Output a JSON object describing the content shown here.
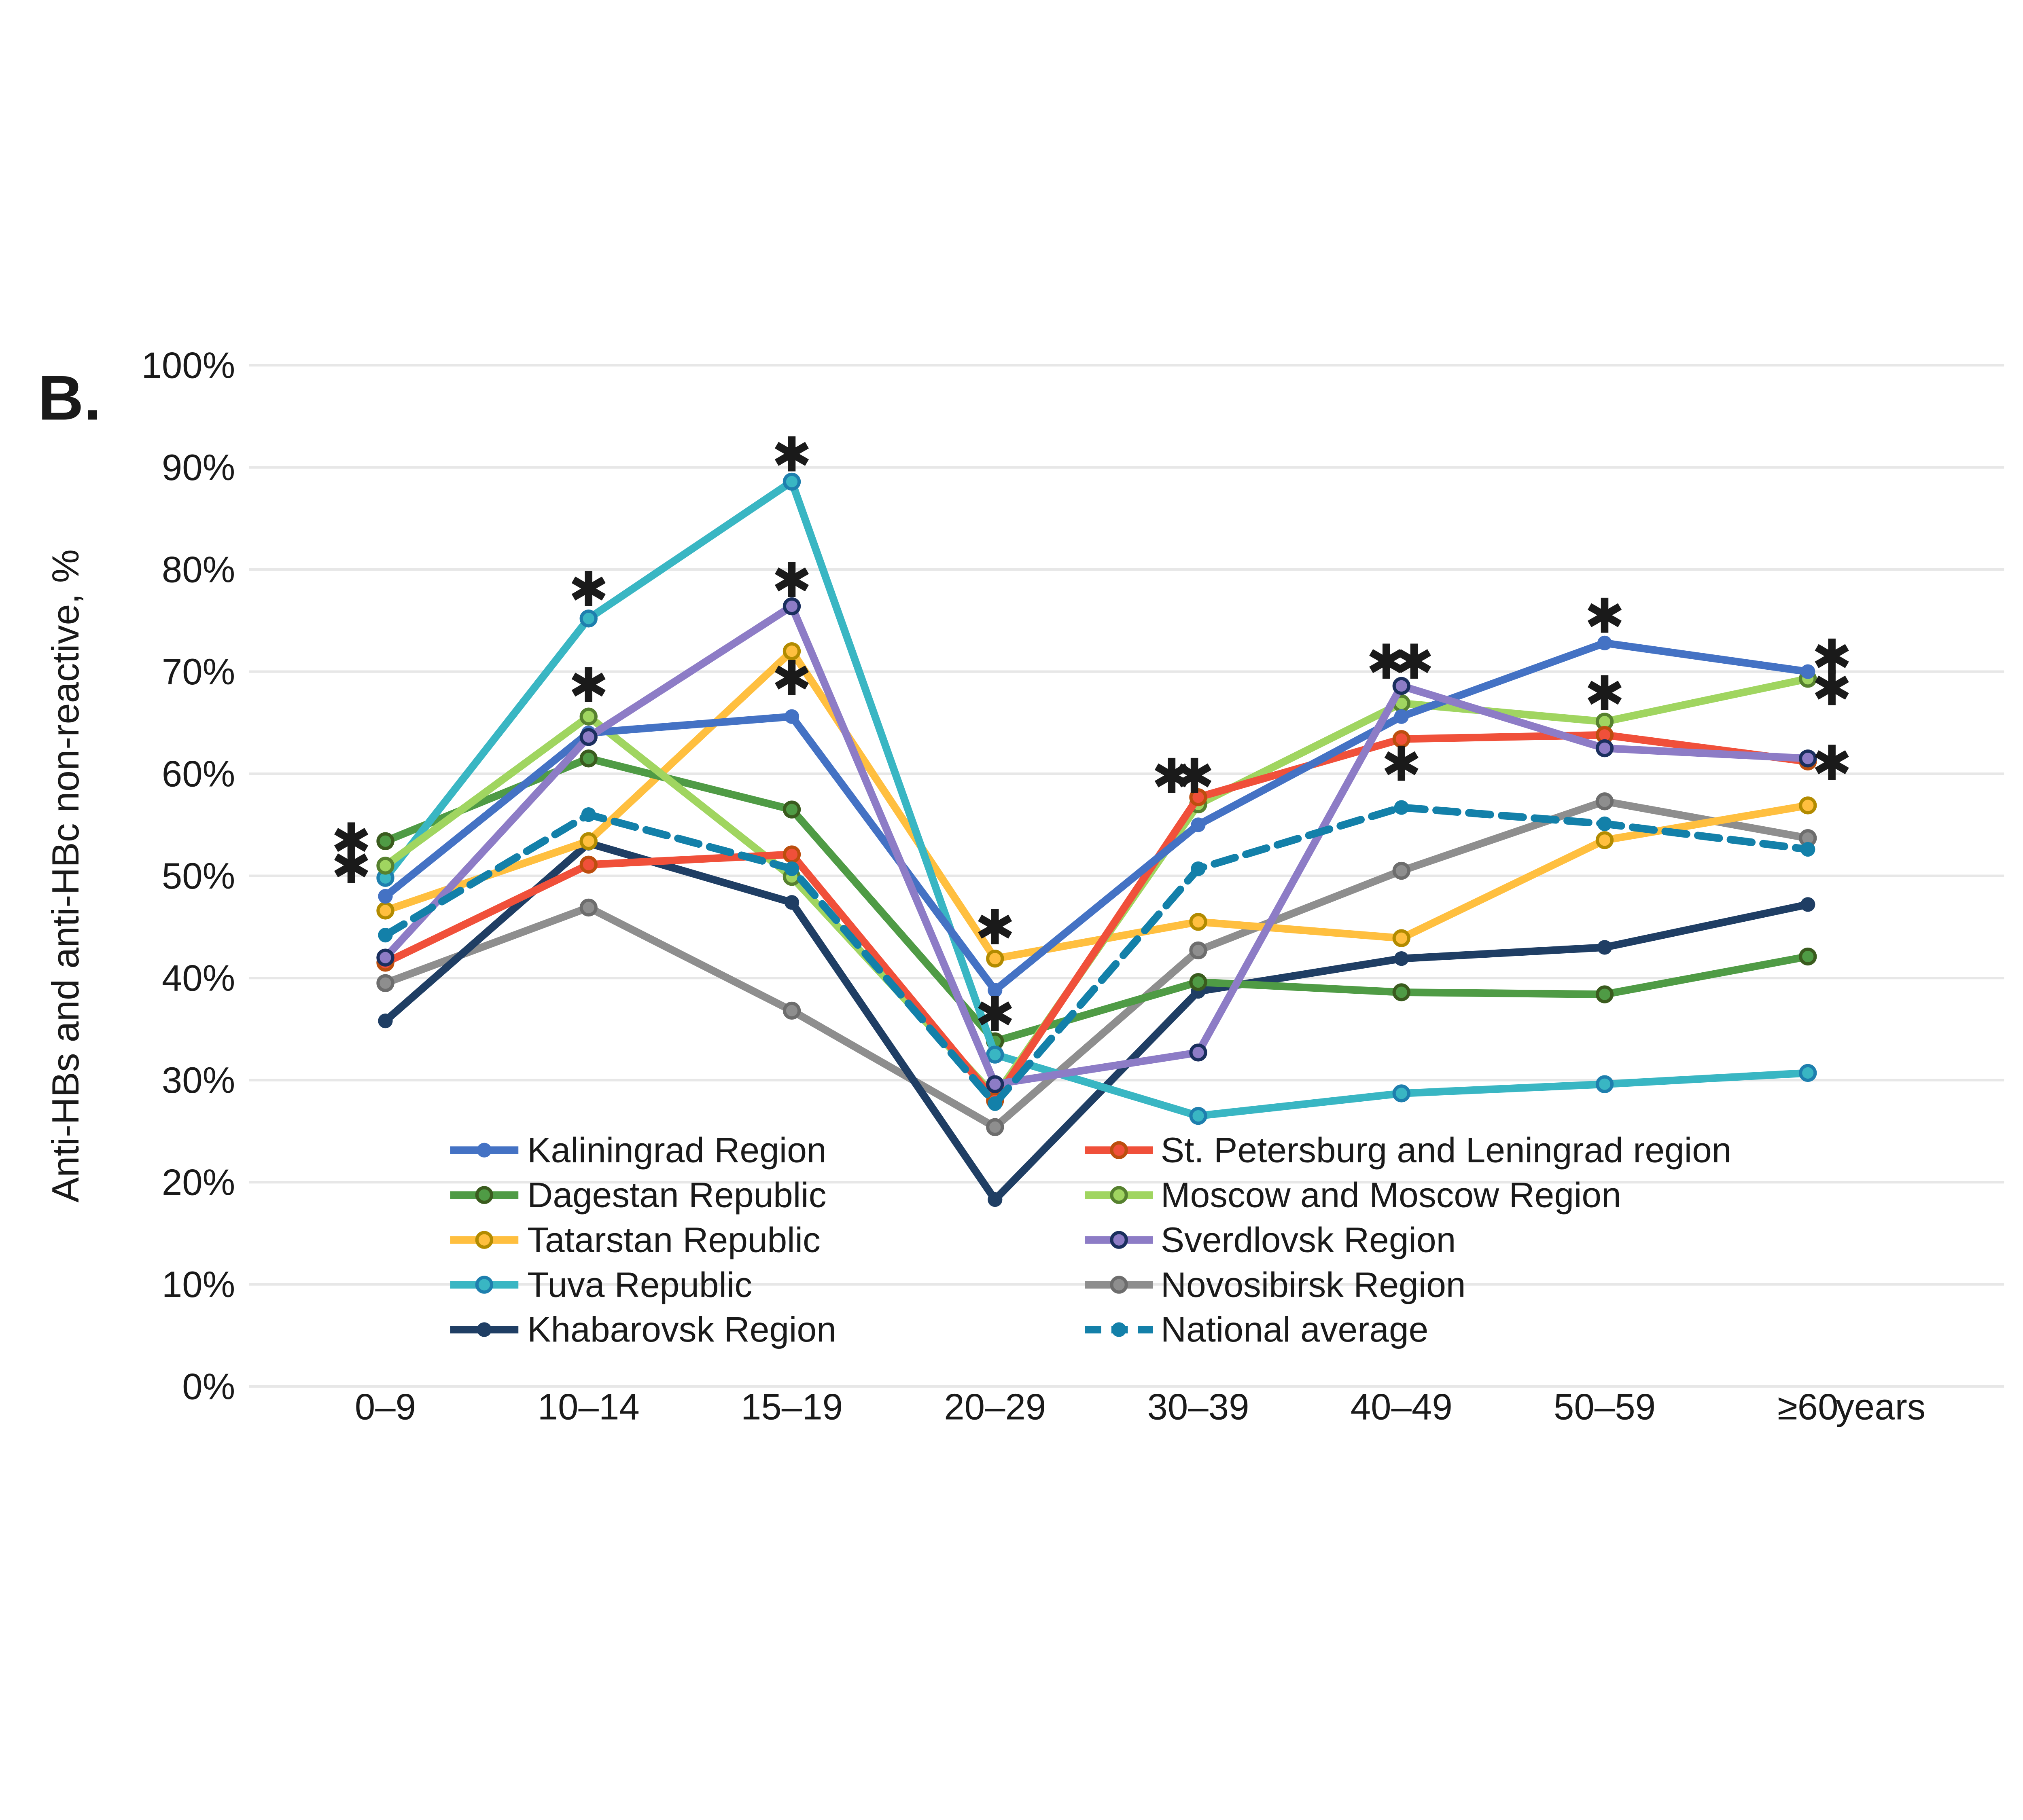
{
  "panel_label": "B.",
  "chart_data": {
    "type": "line",
    "ylabel": "Anti-HBs and anti-HBc non-reactive, %",
    "x_axis_unit_label": "years",
    "categories": [
      "0–9",
      "10–14",
      "15–19",
      "20–29",
      "30–39",
      "40–49",
      "50–59",
      "≥60"
    ],
    "y_tick_labels": [
      "0%",
      "10%",
      "20%",
      "30%",
      "40%",
      "50%",
      "60%",
      "70%",
      "80%",
      "90%",
      "100%"
    ],
    "ylim": [
      0,
      100
    ],
    "grid": true,
    "legend_position": "inside-bottom-center",
    "series": [
      {
        "name": "Kaliningrad Region",
        "color": "#4472C4",
        "marker": "dot",
        "dashed": false,
        "z": 8,
        "legend_col": 0,
        "legend_row": 0,
        "values": [
          48.0,
          64.0,
          65.6,
          38.8,
          55.0,
          65.6,
          72.8,
          70.0
        ]
      },
      {
        "name": "Dagestan Republic",
        "color": "#4F9B45",
        "marker": "ring",
        "ring_color": "#3A5B1E",
        "dashed": false,
        "z": 4,
        "legend_col": 0,
        "legend_row": 1,
        "values": [
          53.4,
          61.5,
          56.5,
          33.8,
          39.6,
          38.6,
          38.4,
          42.1
        ]
      },
      {
        "name": "Tatarstan Republic",
        "color": "#FFBF3F",
        "marker": "ring",
        "ring_color": "#B28B00",
        "dashed": false,
        "z": 3,
        "legend_col": 0,
        "legend_row": 2,
        "values": [
          46.6,
          53.4,
          72.0,
          41.9,
          45.5,
          43.9,
          53.5,
          56.9
        ]
      },
      {
        "name": "Tuva Republic",
        "color": "#39B6C3",
        "marker": "ring",
        "ring_color": "#1E7FAE",
        "dashed": false,
        "z": 5,
        "legend_col": 0,
        "legend_row": 3,
        "values": [
          49.8,
          75.2,
          88.6,
          32.5,
          26.5,
          28.7,
          29.6,
          30.7
        ]
      },
      {
        "name": "Khabarovsk Region",
        "color": "#1F3E64",
        "marker": "dot",
        "dashed": false,
        "z": 2,
        "legend_col": 0,
        "legend_row": 4,
        "values": [
          35.8,
          53.2,
          47.4,
          18.3,
          38.7,
          41.9,
          43.0,
          47.2
        ]
      },
      {
        "name": "St. Petersburg and Leningrad region",
        "color": "#F0503A",
        "marker": "ring",
        "ring_color": "#BC4E0E",
        "dashed": false,
        "z": 7,
        "legend_col": 1,
        "legend_row": 0,
        "values": [
          41.5,
          51.1,
          52.1,
          28.0,
          57.7,
          63.4,
          63.8,
          61.2
        ]
      },
      {
        "name": "Moscow and Moscow Region",
        "color": "#A0D560",
        "marker": "ring",
        "ring_color": "#56812F",
        "dashed": false,
        "z": 6,
        "legend_col": 1,
        "legend_row": 1,
        "values": [
          51.0,
          65.6,
          49.9,
          28.4,
          57.0,
          66.9,
          65.1,
          69.3
        ]
      },
      {
        "name": "Sverdlovsk Region",
        "color": "#8D7CC6",
        "marker": "ring",
        "ring_color": "#1A2F5E",
        "dashed": false,
        "z": 9,
        "legend_col": 1,
        "legend_row": 2,
        "values": [
          42.0,
          63.6,
          76.4,
          29.6,
          32.7,
          68.6,
          62.5,
          61.5
        ]
      },
      {
        "name": "Novosibirsk Region",
        "color": "#8E8E8E",
        "marker": "ring",
        "ring_color": "#6D6D6D",
        "dashed": false,
        "z": 1,
        "legend_col": 1,
        "legend_row": 3,
        "values": [
          39.5,
          46.9,
          36.8,
          25.4,
          42.7,
          50.5,
          57.3,
          53.7
        ]
      },
      {
        "name": "National average",
        "color": "#1380A9",
        "marker": "dot",
        "dashed": true,
        "z": 10,
        "legend_col": 1,
        "legend_row": 4,
        "values": [
          44.2,
          56.0,
          50.7,
          27.7,
          50.7,
          56.7,
          55.1,
          52.6
        ]
      }
    ],
    "significance_marks": [
      {
        "series": "Dagestan Republic",
        "x_index": 0,
        "y": 53.4,
        "dx": -27
      },
      {
        "series": "Moscow and Moscow Region",
        "x_index": 0,
        "y": 50.9,
        "dx": -27
      },
      {
        "series": "Tuva Republic",
        "x_index": 1,
        "y": 78.0,
        "dx": 0
      },
      {
        "series": "Moscow and Moscow Region",
        "x_index": 1,
        "y": 68.6,
        "dx": 0
      },
      {
        "series": "Tuva Republic",
        "x_index": 2,
        "y": 91.2,
        "dx": 0
      },
      {
        "series": "Sverdlovsk Region",
        "x_index": 2,
        "y": 78.9,
        "dx": 0
      },
      {
        "series": "Tatarstan Republic",
        "x_index": 2,
        "y": 69.3,
        "dx": 0
      },
      {
        "series": "Tatarstan Republic",
        "x_index": 3,
        "y": 44.9,
        "dx": 0
      },
      {
        "series": "Kaliningrad Region",
        "x_index": 3,
        "y": 36.4,
        "dx": 0
      },
      {
        "series": "St. Petersburg and Leningrad region",
        "x_index": 4,
        "y": 59.7,
        "dx": -21
      },
      {
        "series": "Moscow and Moscow Region",
        "x_index": 4,
        "y": 59.7,
        "dx": -3
      },
      {
        "series": "Sverdlovsk Region",
        "x_index": 5,
        "y": 70.9,
        "dx": -12
      },
      {
        "series": "Moscow and Moscow Region",
        "x_index": 5,
        "y": 70.9,
        "dx": 10
      },
      {
        "series": "St. Petersburg and Leningrad region",
        "x_index": 5,
        "y": 60.9,
        "dx": 0
      },
      {
        "series": "Kaliningrad Region",
        "x_index": 6,
        "y": 75.4,
        "dx": 0
      },
      {
        "series": "Moscow and Moscow Region",
        "x_index": 6,
        "y": 67.8,
        "dx": 0
      },
      {
        "series": "Kaliningrad Region",
        "x_index": 7,
        "y": 71.4,
        "dx": 19
      },
      {
        "series": "Moscow and Moscow Region",
        "x_index": 7,
        "y": 68.3,
        "dx": 19
      },
      {
        "series": "St. Petersburg and Leningrad region",
        "x_index": 7,
        "y": 61.0,
        "dx": 19
      }
    ]
  }
}
